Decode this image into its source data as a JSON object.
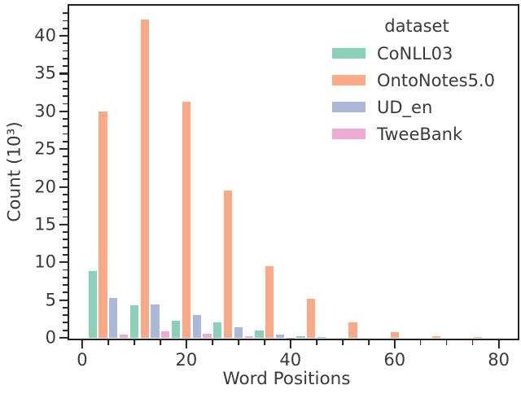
{
  "figure": {
    "background": "#ffffff",
    "text_color": "#3a3a3a",
    "spine_color": "#222222"
  },
  "chart_data": {
    "type": "bar",
    "subtype": "grouped-histogram",
    "title": "",
    "xlabel": "Word Positions",
    "ylabel": "Count (10³)",
    "legend_title": "dataset",
    "legend_position": "upper right",
    "grid": false,
    "bin_edges": [
      1,
      9,
      17,
      25,
      33,
      41,
      49,
      57,
      65,
      73,
      81
    ],
    "bin_centers": [
      5,
      13,
      21,
      29,
      37,
      45,
      53,
      61,
      69,
      77
    ],
    "xlim": [
      -2.5,
      83.5
    ],
    "ylim": [
      0,
      44
    ],
    "x_major_ticks": [
      0,
      20,
      40,
      60,
      80
    ],
    "x_minor_tick_step": 5,
    "y_major_ticks": [
      0,
      5,
      10,
      15,
      20,
      25,
      30,
      35,
      40
    ],
    "y_minor_tick_step": 1,
    "count_unit": "10^3",
    "series": [
      {
        "name": "CoNLL03",
        "color": "#8bd1ba",
        "values": [
          8.8,
          4.3,
          2.3,
          2.0,
          1.0,
          0.25,
          0,
          0,
          0,
          0
        ]
      },
      {
        "name": "OntoNotes5.0",
        "color": "#fca987",
        "values": [
          30.0,
          42.2,
          31.3,
          19.5,
          9.5,
          5.2,
          2.1,
          0.8,
          0.25,
          0.07
        ]
      },
      {
        "name": "UD_en",
        "color": "#abb8d8",
        "values": [
          5.3,
          4.4,
          3.0,
          1.35,
          0.45,
          0.15,
          0,
          0,
          0,
          0
        ]
      },
      {
        "name": "TweeBank",
        "color": "#eeaad3",
        "values": [
          0.45,
          0.85,
          0.55,
          0.18,
          0.05,
          0,
          0,
          0,
          0,
          0
        ]
      }
    ]
  }
}
